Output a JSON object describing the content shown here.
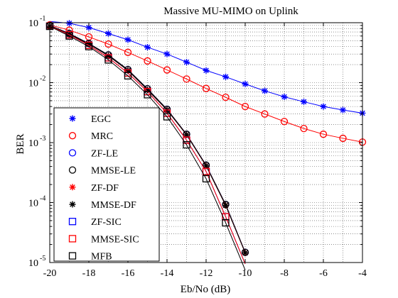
{
  "chart_data": {
    "type": "line",
    "title": "Massive MU-MIMO on Uplink",
    "xlabel": "Eb/No (dB)",
    "ylabel": "BER",
    "xlim": [
      -20,
      -4
    ],
    "ylim": [
      1e-05,
      0.1
    ],
    "yscale": "log",
    "grid": true,
    "legend_position": "bottom-left",
    "x_ticks": [
      "-20",
      "-18",
      "-16",
      "-14",
      "-12",
      "-10",
      "-8",
      "-6",
      "-4"
    ],
    "y_ticks": [
      {
        "base": "10",
        "exp": "-1"
      },
      {
        "base": "10",
        "exp": "-2"
      },
      {
        "base": "10",
        "exp": "-3"
      },
      {
        "base": "10",
        "exp": "-4"
      },
      {
        "base": "10",
        "exp": "-5"
      }
    ],
    "series": [
      {
        "name": "EGC",
        "color": "#0000ff",
        "marker": "star",
        "x": [
          -20,
          -19,
          -18,
          -17,
          -16,
          -15,
          -14,
          -13,
          -12,
          -11,
          -10,
          -9,
          -8,
          -7,
          -6,
          -5,
          -4
        ],
        "values": [
          0.105,
          0.098,
          0.083,
          0.066,
          0.052,
          0.039,
          0.03,
          0.022,
          0.016,
          0.0125,
          0.0095,
          0.0073,
          0.0058,
          0.0048,
          0.004,
          0.0035,
          0.0031
        ]
      },
      {
        "name": "MRC",
        "color": "#ff0000",
        "marker": "circle",
        "x": [
          -20,
          -19,
          -18,
          -17,
          -16,
          -15,
          -14,
          -13,
          -12,
          -11,
          -10,
          -9,
          -8,
          -7,
          -6,
          -5,
          -4
        ],
        "values": [
          0.092,
          0.075,
          0.058,
          0.044,
          0.032,
          0.023,
          0.0163,
          0.0115,
          0.008,
          0.0057,
          0.004,
          0.003,
          0.00225,
          0.00172,
          0.00138,
          0.00118,
          0.00102
        ]
      },
      {
        "name": "ZF-LE",
        "color": "#0000ff",
        "marker": "circle",
        "x": [
          -20,
          -19,
          -18,
          -17,
          -16,
          -15,
          -14,
          -13,
          -12,
          -11,
          -10
        ],
        "values": [
          0.09,
          0.066,
          0.045,
          0.029,
          0.0165,
          0.0079,
          0.0036,
          0.00138,
          0.00042,
          9.3e-05,
          1.48e-05
        ]
      },
      {
        "name": "MMSE-LE",
        "color": "#000000",
        "marker": "circle",
        "x": [
          -20,
          -19,
          -18,
          -17,
          -16,
          -15,
          -14,
          -13,
          -12,
          -11,
          -10
        ],
        "values": [
          0.09,
          0.066,
          0.045,
          0.029,
          0.0165,
          0.0079,
          0.0036,
          0.00138,
          0.00042,
          9.3e-05,
          1.48e-05
        ]
      },
      {
        "name": "ZF-DF",
        "color": "#ff0000",
        "marker": "star",
        "x": [
          -20,
          -19,
          -18,
          -17,
          -16,
          -15,
          -14,
          -13,
          -12,
          -11,
          -10
        ],
        "values": [
          0.088,
          0.064,
          0.044,
          0.028,
          0.016,
          0.0076,
          0.0035,
          0.00135,
          0.00041,
          9e-05,
          1.45e-05
        ]
      },
      {
        "name": "MMSE-DF",
        "color": "#000000",
        "marker": "star",
        "x": [
          -20,
          -19,
          -18,
          -17,
          -16,
          -15,
          -14,
          -13,
          -12,
          -11,
          -10
        ],
        "values": [
          0.088,
          0.064,
          0.044,
          0.028,
          0.016,
          0.0076,
          0.0035,
          0.00135,
          0.00041,
          9e-05,
          1.45e-05
        ]
      },
      {
        "name": "ZF-SIC",
        "color": "#0000ff",
        "marker": "square",
        "x": [
          -20,
          -19,
          -18,
          -17,
          -16,
          -15,
          -14,
          -13,
          -12,
          -11,
          -10
        ],
        "values": [
          0.088,
          0.063,
          0.042,
          0.026,
          0.0145,
          0.0071,
          0.0031,
          0.0011,
          0.00033,
          5.8e-05,
          9.5e-06
        ]
      },
      {
        "name": "MMSE-SIC",
        "color": "#ff0000",
        "marker": "square",
        "x": [
          -20,
          -19,
          -18,
          -17,
          -16,
          -15,
          -14,
          -13,
          -12,
          -11,
          -10
        ],
        "values": [
          0.088,
          0.063,
          0.042,
          0.026,
          0.0145,
          0.0071,
          0.0031,
          0.0011,
          0.00033,
          5.8e-05,
          9.5e-06
        ]
      },
      {
        "name": "MFB",
        "color": "#000000",
        "marker": "square",
        "x": [
          -20,
          -19,
          -18,
          -17,
          -16,
          -15,
          -14,
          -13,
          -12,
          -11,
          -10
        ],
        "values": [
          0.087,
          0.06,
          0.04,
          0.024,
          0.013,
          0.0063,
          0.0027,
          0.00092,
          0.00025,
          4.6e-05,
          7.5e-06
        ]
      }
    ]
  }
}
